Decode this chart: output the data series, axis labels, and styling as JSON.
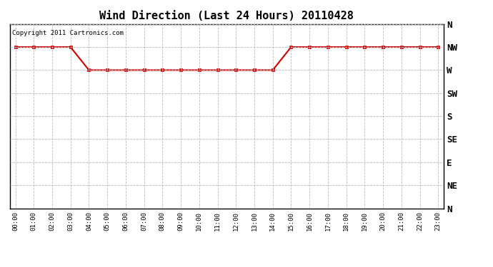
{
  "title": "Wind Direction (Last 24 Hours) 20110428",
  "copyright_text": "Copyright 2011 Cartronics.com",
  "background_color": "#ffffff",
  "plot_bg_color": "#ffffff",
  "line_color": "#cc0000",
  "marker_color": "#cc0000",
  "grid_color": "#bbbbbb",
  "ytick_labels": [
    "N",
    "NW",
    "W",
    "SW",
    "S",
    "SE",
    "E",
    "NE",
    "N"
  ],
  "ytick_values": [
    9,
    8,
    7,
    6,
    5,
    4,
    3,
    2,
    1
  ],
  "xtick_labels": [
    "00:00",
    "01:00",
    "02:00",
    "03:00",
    "04:00",
    "05:00",
    "06:00",
    "07:00",
    "08:00",
    "09:00",
    "10:00",
    "11:00",
    "12:00",
    "13:00",
    "14:00",
    "15:00",
    "16:00",
    "17:00",
    "18:00",
    "19:00",
    "20:00",
    "21:00",
    "22:00",
    "23:00"
  ],
  "hours": [
    0,
    1,
    2,
    3,
    4,
    5,
    6,
    7,
    8,
    9,
    10,
    11,
    12,
    13,
    14,
    15,
    16,
    17,
    18,
    19,
    20,
    21,
    22,
    23
  ],
  "wind_values": [
    8,
    8,
    8,
    8,
    7,
    7,
    7,
    7,
    7,
    7,
    7,
    7,
    7,
    7,
    7,
    8,
    8,
    8,
    8,
    8,
    8,
    8,
    8,
    8
  ],
  "ylim_min": 1,
  "ylim_max": 9,
  "xlim_min": 0,
  "xlim_max": 23
}
